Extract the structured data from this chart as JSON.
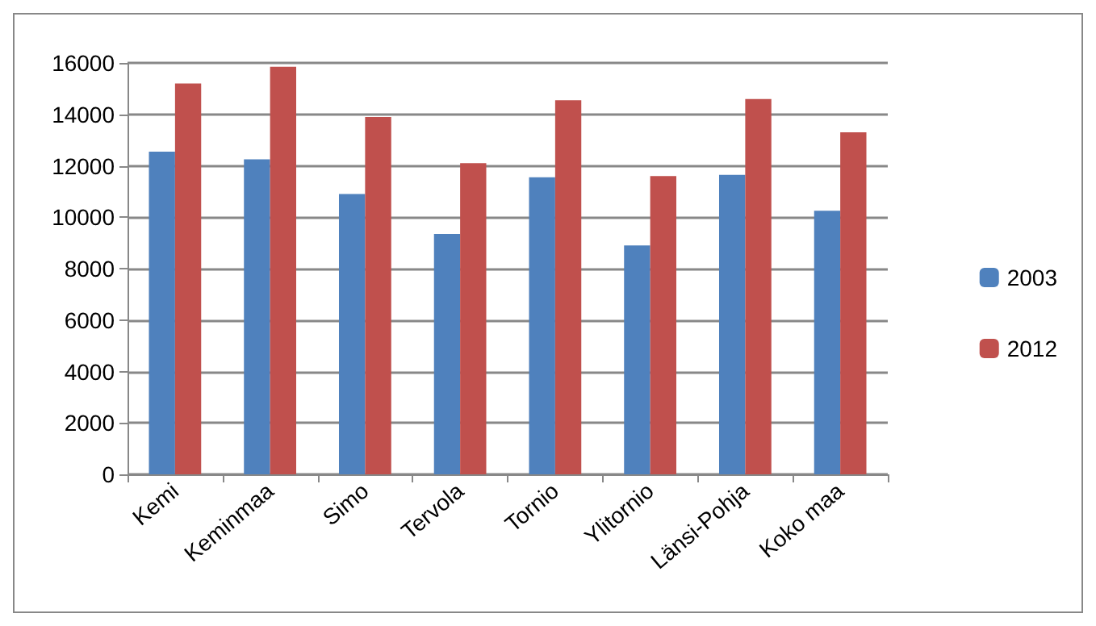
{
  "chart_data": {
    "type": "bar",
    "categories": [
      "Kemi",
      "Keminmaa",
      "Simo",
      "Tervola",
      "Tornio",
      "Ylitornio",
      "Länsi-Pohja",
      "Koko maa"
    ],
    "series": [
      {
        "name": "2003",
        "color": "#4f81bd",
        "values": [
          12550,
          12250,
          10900,
          9350,
          11550,
          8900,
          11650,
          10250
        ]
      },
      {
        "name": "2012",
        "color": "#c0504d",
        "values": [
          15200,
          15850,
          13900,
          12100,
          14550,
          11600,
          14600,
          13300
        ]
      }
    ],
    "ylim": [
      0,
      16000
    ],
    "yticks": [
      0,
      2000,
      4000,
      6000,
      8000,
      10000,
      12000,
      14000,
      16000
    ],
    "grid": "y",
    "legend": "right"
  }
}
